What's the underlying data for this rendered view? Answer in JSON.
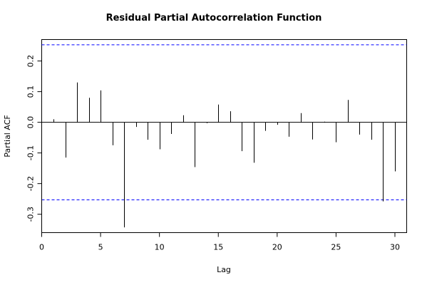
{
  "chart_data": {
    "type": "bar",
    "title": "Residual Partial Autocorrelation Function",
    "xlabel": "Lag",
    "ylabel": "Partial ACF",
    "xlim": [
      0,
      31
    ],
    "ylim": [
      -0.36,
      0.27
    ],
    "x_ticks": [
      0,
      5,
      10,
      15,
      20,
      25,
      30
    ],
    "y_ticks": [
      -0.3,
      -0.2,
      -0.1,
      0.0,
      0.1,
      0.2
    ],
    "x_tick_labels": [
      "0",
      "5",
      "10",
      "15",
      "20",
      "25",
      "30"
    ],
    "y_tick_labels": [
      "-0.3",
      "-0.2",
      "-0.1",
      "0.0",
      "0.1",
      "0.2"
    ],
    "confidence_bounds": [
      0.253,
      -0.253
    ],
    "colors": {
      "bars": "#000000",
      "bounds": "#0000ff",
      "zero_line": "#000000"
    },
    "lags": [
      1,
      2,
      3,
      4,
      5,
      6,
      7,
      8,
      9,
      10,
      11,
      12,
      13,
      14,
      15,
      16,
      17,
      18,
      19,
      20,
      21,
      22,
      23,
      24,
      25,
      26,
      27,
      28,
      29,
      30
    ],
    "values": [
      0.01,
      -0.115,
      0.13,
      0.08,
      0.104,
      -0.075,
      -0.343,
      -0.015,
      -0.057,
      -0.088,
      -0.038,
      0.023,
      -0.146,
      -0.003,
      0.058,
      0.036,
      -0.094,
      -0.132,
      -0.028,
      -0.008,
      -0.047,
      0.03,
      -0.056,
      0.002,
      -0.065,
      0.073,
      -0.04,
      -0.057,
      -0.258,
      -0.16
    ]
  }
}
